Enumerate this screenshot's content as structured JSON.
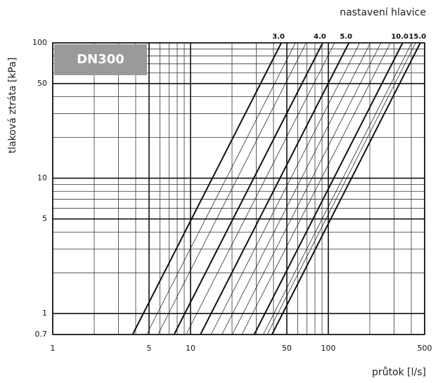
{
  "chart_data": {
    "type": "line",
    "log_x": true,
    "log_y": true,
    "annotation": "nastavení hlavice",
    "badge": "DN300",
    "ylabel": "tlaková ztráta [kPa]",
    "xlabel": "průtok [l/s]",
    "xlim": [
      1,
      500
    ],
    "ylim": [
      0.7,
      100
    ],
    "xticks": [
      1,
      5,
      10,
      50,
      100,
      500
    ],
    "yticks": [
      0.7,
      1,
      5,
      10,
      50,
      100
    ],
    "xgrid": [
      2,
      3,
      4,
      6,
      7,
      8,
      9,
      20,
      30,
      40,
      60,
      70,
      80,
      90,
      200,
      300,
      400
    ],
    "ygrid": [
      2,
      3,
      4,
      6,
      7,
      8,
      9,
      20,
      30,
      40,
      60,
      70,
      80,
      90
    ],
    "color": "#111",
    "series": [
      {
        "name": "3.0",
        "x": [
          3.8,
          45.6
        ],
        "values": [
          0.7,
          100
        ],
        "width": 2
      },
      {
        "x": [
          4.8,
          57.7
        ],
        "values": [
          0.7,
          100
        ],
        "width": 0.7
      },
      {
        "x": [
          5.8,
          69
        ],
        "values": [
          0.7,
          100
        ],
        "width": 0.7
      },
      {
        "name": "4.0",
        "x": [
          7.6,
          91
        ],
        "values": [
          0.7,
          100
        ],
        "width": 2
      },
      {
        "x": [
          9.3,
          111
        ],
        "values": [
          0.7,
          100
        ],
        "width": 0.7
      },
      {
        "name": "5.0",
        "x": [
          11.8,
          141
        ],
        "values": [
          0.7,
          100
        ],
        "width": 2
      },
      {
        "x": [
          14.1,
          169
        ],
        "values": [
          0.7,
          100
        ],
        "width": 0.7
      },
      {
        "x": [
          16.9,
          202
        ],
        "values": [
          0.7,
          100
        ],
        "width": 0.7
      },
      {
        "x": [
          20.1,
          241
        ],
        "values": [
          0.7,
          100
        ],
        "width": 0.7
      },
      {
        "x": [
          23.6,
          282
        ],
        "values": [
          0.7,
          100
        ],
        "width": 0.7
      },
      {
        "name": "10.0",
        "x": [
          29,
          346
        ],
        "values": [
          0.7,
          100
        ],
        "width": 2
      },
      {
        "x": [
          33.7,
          403
        ],
        "values": [
          0.7,
          100
        ],
        "width": 0.7
      },
      {
        "x": [
          36,
          430
        ],
        "values": [
          0.7,
          100
        ],
        "width": 0.7
      },
      {
        "name": "15.0",
        "x": [
          39,
          465
        ],
        "values": [
          0.7,
          100
        ],
        "width": 2
      }
    ]
  }
}
